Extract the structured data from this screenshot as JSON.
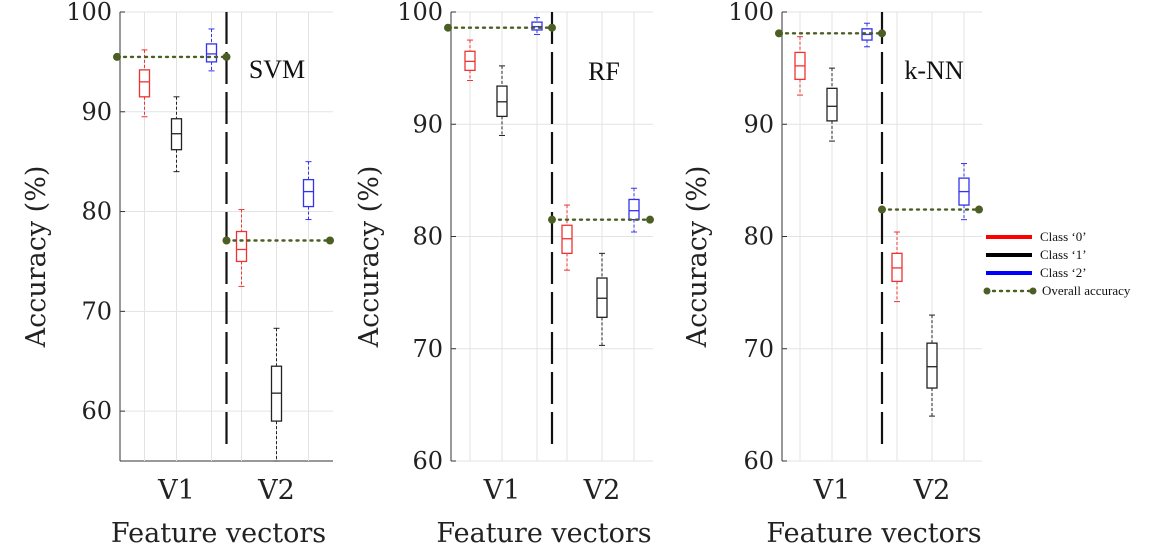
{
  "chart_data": [
    {
      "type": "box",
      "title": "SVM",
      "ylabel": "Accuracy (%)",
      "xlabel": "Feature vectors",
      "categories": [
        "V1",
        "V2"
      ],
      "ylim": [
        55,
        100
      ],
      "yticks": [
        60,
        70,
        80,
        90,
        100
      ],
      "grid": true,
      "overall_accuracy": [
        95.5,
        77.1
      ],
      "boxes": [
        {
          "group": "V1",
          "class": "Class ‘0’",
          "min": 89.5,
          "q1": 91.5,
          "median": 93.0,
          "q3": 94.2,
          "max": 96.2
        },
        {
          "group": "V1",
          "class": "Class ‘1’",
          "min": 84.0,
          "q1": 86.2,
          "median": 87.8,
          "q3": 89.3,
          "max": 91.5
        },
        {
          "group": "V1",
          "class": "Class ‘2’",
          "min": 94.1,
          "q1": 95.0,
          "median": 95.8,
          "q3": 96.8,
          "max": 98.3
        },
        {
          "group": "V2",
          "class": "Class ‘0’",
          "min": 72.5,
          "q1": 75.0,
          "median": 76.2,
          "q3": 78.0,
          "max": 80.2
        },
        {
          "group": "V2",
          "class": "Class ‘1’",
          "min": 55.0,
          "q1": 59.0,
          "median": 61.8,
          "q3": 64.5,
          "max": 68.3
        },
        {
          "group": "V2",
          "class": "Class ‘2’",
          "min": 79.2,
          "q1": 80.5,
          "median": 82.0,
          "q3": 83.2,
          "max": 85.0
        }
      ]
    },
    {
      "type": "box",
      "title": "RF",
      "ylabel": "Accuracy (%)",
      "xlabel": "Feature vectors",
      "categories": [
        "V1",
        "V2"
      ],
      "ylim": [
        60,
        100
      ],
      "yticks": [
        60,
        70,
        80,
        90,
        100
      ],
      "grid": true,
      "overall_accuracy": [
        98.6,
        81.5
      ],
      "boxes": [
        {
          "group": "V1",
          "class": "Class ‘0’",
          "min": 93.9,
          "q1": 94.8,
          "median": 95.6,
          "q3": 96.5,
          "max": 97.5
        },
        {
          "group": "V1",
          "class": "Class ‘1’",
          "min": 89.0,
          "q1": 90.7,
          "median": 92.0,
          "q3": 93.4,
          "max": 95.2
        },
        {
          "group": "V1",
          "class": "Class ‘2’",
          "min": 98.0,
          "q1": 98.4,
          "median": 98.7,
          "q3": 99.1,
          "max": 99.5
        },
        {
          "group": "V2",
          "class": "Class ‘0’",
          "min": 77.0,
          "q1": 78.5,
          "median": 79.8,
          "q3": 81.0,
          "max": 82.8
        },
        {
          "group": "V2",
          "class": "Class ‘1’",
          "min": 70.3,
          "q1": 72.8,
          "median": 74.5,
          "q3": 76.3,
          "max": 78.5
        },
        {
          "group": "V2",
          "class": "Class ‘2’",
          "min": 80.4,
          "q1": 81.5,
          "median": 82.3,
          "q3": 83.3,
          "max": 84.3
        }
      ]
    },
    {
      "type": "box",
      "title": "k-NN",
      "ylabel": "Accuracy (%)",
      "xlabel": "Feature vectors",
      "categories": [
        "V1",
        "V2"
      ],
      "ylim": [
        60,
        100
      ],
      "yticks": [
        60,
        70,
        80,
        90,
        100
      ],
      "grid": true,
      "overall_accuracy": [
        98.1,
        82.4
      ],
      "boxes": [
        {
          "group": "V1",
          "class": "Class ‘0’",
          "min": 92.6,
          "q1": 94.0,
          "median": 95.2,
          "q3": 96.4,
          "max": 97.8
        },
        {
          "group": "V1",
          "class": "Class ‘1’",
          "min": 88.5,
          "q1": 90.3,
          "median": 91.6,
          "q3": 93.2,
          "max": 95.0
        },
        {
          "group": "V1",
          "class": "Class ‘2’",
          "min": 96.9,
          "q1": 97.5,
          "median": 98.0,
          "q3": 98.5,
          "max": 99.0
        },
        {
          "group": "V2",
          "class": "Class ‘0’",
          "min": 74.2,
          "q1": 76.0,
          "median": 77.2,
          "q3": 78.5,
          "max": 80.4
        },
        {
          "group": "V2",
          "class": "Class ‘1’",
          "min": 64.0,
          "q1": 66.5,
          "median": 68.4,
          "q3": 70.5,
          "max": 73.0
        },
        {
          "group": "V2",
          "class": "Class ‘2’",
          "min": 81.5,
          "q1": 82.8,
          "median": 84.0,
          "q3": 85.2,
          "max": 86.5
        }
      ]
    }
  ],
  "legend": {
    "placement": "right",
    "entries": [
      {
        "label": "Class ‘0’",
        "color": "#ff0000",
        "style": "solid"
      },
      {
        "label": "Class ‘1’",
        "color": "#000000",
        "style": "solid"
      },
      {
        "label": "Class ‘2’",
        "color": "#0000ff",
        "style": "solid"
      },
      {
        "label": "Overall accuracy",
        "color": "#4b5e24",
        "style": "dotted-with-markers"
      }
    ]
  },
  "colors": {
    "Class ‘0’": "#ee3333",
    "Class ‘1’": "#222222",
    "Class ‘2’": "#3333ee",
    "overall": "#4b5e24",
    "grid": "#e3e3e3"
  }
}
